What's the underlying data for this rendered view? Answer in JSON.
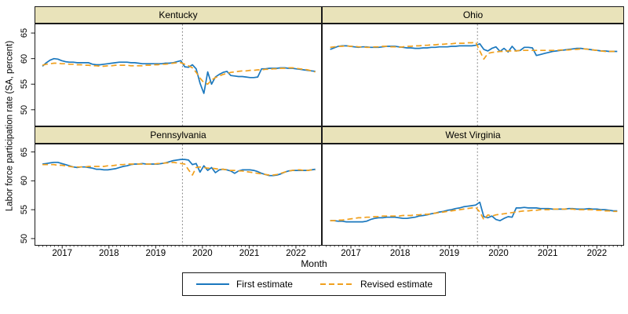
{
  "figure": {
    "ylabel": "Labor force participation rate (SA, percent)",
    "xlabel": "Month",
    "colors": {
      "first_estimate": "#1B78BE",
      "revised_estimate": "#F0A01E",
      "header_fill": "#E9E3BA",
      "border": "#1A1A1A",
      "event_line": "#8C8C8C"
    },
    "y_ticks": [
      50,
      55,
      60,
      65
    ],
    "x_year_ticks": [
      {
        "label": "2017",
        "f": 0.094
      },
      {
        "label": "2018",
        "f": 0.2576
      },
      {
        "label": "2019",
        "f": 0.4213
      },
      {
        "label": "2020",
        "f": 0.5849
      },
      {
        "label": "2021",
        "f": 0.7486
      },
      {
        "label": "2022",
        "f": 0.9122
      }
    ],
    "x_start": 0.025,
    "x_step": 0.013451,
    "event_line_f": 0.515,
    "legend": {
      "items": [
        {
          "label": "First estimate",
          "series": "first_estimate",
          "style": "solid"
        },
        {
          "label": "Revised estimate",
          "series": "revised_estimate",
          "style": "dashed"
        }
      ]
    }
  },
  "chart_data": [
    {
      "type": "line",
      "title": "Kentucky",
      "x_note": "monthly, late 2016 through late 2022; year ticks 2017-2022; vertical dashed line at early 2020",
      "ylim": [
        46.9,
        66.7
      ],
      "series": [
        {
          "name": "First estimate",
          "values": [
            58.5,
            59.2,
            59.7,
            60.0,
            59.9,
            59.6,
            59.4,
            59.3,
            59.3,
            59.2,
            59.2,
            59.2,
            59.2,
            58.9,
            58.8,
            58.8,
            58.9,
            59.0,
            59.1,
            59.2,
            59.3,
            59.3,
            59.3,
            59.2,
            59.2,
            59.1,
            59.0,
            59.0,
            59.0,
            59.0,
            59.0,
            59.0,
            59.1,
            59.1,
            59.2,
            59.4,
            59.6,
            58.4,
            58.3,
            58.8,
            58.0,
            55.2,
            53.2,
            57.4,
            55.0,
            56.4,
            56.9,
            57.3,
            57.5,
            56.7,
            56.6,
            56.5,
            56.5,
            56.4,
            56.3,
            56.3,
            56.4,
            58.0,
            58.0,
            58.1,
            58.1,
            58.1,
            58.2,
            58.2,
            58.1,
            58.1,
            58.0,
            57.9,
            57.8,
            57.7,
            57.6,
            57.5
          ]
        },
        {
          "name": "Revised estimate",
          "values": [
            58.7,
            58.9,
            59.0,
            59.1,
            59.1,
            59.0,
            59.0,
            58.9,
            58.9,
            58.8,
            58.8,
            58.7,
            58.7,
            58.6,
            58.6,
            58.5,
            58.5,
            58.6,
            58.6,
            58.7,
            58.7,
            58.7,
            58.7,
            58.6,
            58.6,
            58.6,
            58.6,
            58.7,
            58.7,
            58.8,
            58.8,
            58.9,
            58.9,
            59.0,
            59.1,
            59.2,
            59.2,
            58.9,
            58.6,
            58.2,
            57.3,
            56.2,
            55.3,
            55.0,
            55.8,
            56.3,
            56.6,
            56.9,
            57.1,
            57.3,
            57.4,
            57.5,
            57.6,
            57.6,
            57.7,
            57.7,
            57.8,
            57.8,
            57.9,
            57.9,
            58.0,
            58.0,
            58.1,
            58.1,
            58.2,
            58.2,
            58.1,
            58.0,
            57.9,
            57.8,
            57.6,
            57.4
          ]
        }
      ]
    },
    {
      "type": "line",
      "title": "Ohio",
      "x_note": "monthly, late 2016 through late 2022; year ticks 2017-2022; vertical dashed line at early 2020",
      "ylim": [
        46.9,
        66.7
      ],
      "series": [
        {
          "name": "First estimate",
          "values": [
            61.8,
            62.1,
            62.4,
            62.5,
            62.5,
            62.4,
            62.3,
            62.2,
            62.3,
            62.3,
            62.2,
            62.2,
            62.2,
            62.3,
            62.4,
            62.4,
            62.4,
            62.3,
            62.2,
            62.1,
            62.1,
            62.0,
            62.0,
            62.1,
            62.1,
            62.2,
            62.2,
            62.3,
            62.3,
            62.3,
            62.4,
            62.4,
            62.5,
            62.5,
            62.5,
            62.5,
            62.6,
            62.9,
            61.8,
            61.5,
            62.0,
            62.3,
            61.4,
            62.0,
            61.3,
            62.4,
            61.5,
            61.6,
            62.2,
            62.2,
            62.1,
            60.6,
            60.8,
            61.0,
            61.2,
            61.4,
            61.5,
            61.6,
            61.7,
            61.8,
            61.9,
            62.0,
            62.0,
            61.9,
            61.8,
            61.7,
            61.6,
            61.5,
            61.5,
            61.4,
            61.4,
            61.4
          ]
        },
        {
          "name": "Revised estimate",
          "values": [
            62.2,
            62.3,
            62.4,
            62.4,
            62.5,
            62.4,
            62.4,
            62.3,
            62.3,
            62.2,
            62.2,
            62.3,
            62.3,
            62.4,
            62.4,
            62.3,
            62.3,
            62.2,
            62.3,
            62.4,
            62.4,
            62.5,
            62.5,
            62.6,
            62.6,
            62.7,
            62.7,
            62.8,
            62.8,
            62.9,
            62.9,
            63.0,
            63.0,
            63.0,
            63.1,
            63.1,
            63.2,
            61.5,
            59.9,
            61.0,
            61.2,
            61.3,
            61.4,
            61.4,
            61.5,
            61.5,
            61.5,
            61.6,
            61.6,
            61.6,
            61.6,
            61.6,
            61.6,
            61.6,
            61.6,
            61.6,
            61.6,
            61.7,
            61.7,
            61.7,
            61.8,
            61.8,
            61.9,
            61.9,
            61.8,
            61.7,
            61.6,
            61.5,
            61.4,
            61.4,
            61.4,
            61.4
          ]
        }
      ]
    },
    {
      "type": "line",
      "title": "Pennsylvania",
      "x_note": "monthly, late 2016 through late 2022; year ticks 2017-2022; vertical dashed line at early 2020",
      "ylim": [
        48.9,
        66.3
      ],
      "series": [
        {
          "name": "First estimate",
          "values": [
            62.9,
            63.0,
            63.1,
            63.2,
            63.2,
            63.0,
            62.8,
            62.6,
            62.4,
            62.3,
            62.4,
            62.4,
            62.3,
            62.2,
            62.0,
            62.0,
            61.9,
            61.9,
            62.0,
            62.1,
            62.3,
            62.5,
            62.6,
            62.8,
            62.9,
            62.9,
            63.0,
            62.9,
            62.9,
            62.9,
            62.9,
            63.0,
            63.1,
            63.3,
            63.5,
            63.6,
            63.7,
            63.7,
            63.6,
            62.8,
            63.0,
            61.5,
            62.6,
            61.8,
            62.3,
            61.4,
            61.9,
            62.0,
            61.9,
            61.7,
            61.3,
            61.7,
            61.9,
            61.9,
            61.9,
            61.8,
            61.6,
            61.3,
            61.1,
            60.9,
            60.9,
            61.0,
            61.2,
            61.5,
            61.7,
            61.8,
            61.8,
            61.8,
            61.8,
            61.8,
            61.9,
            62.0
          ]
        },
        {
          "name": "Revised estimate",
          "values": [
            62.8,
            62.8,
            62.8,
            62.8,
            62.7,
            62.7,
            62.6,
            62.5,
            62.4,
            62.4,
            62.4,
            62.4,
            62.5,
            62.5,
            62.5,
            62.5,
            62.5,
            62.6,
            62.6,
            62.7,
            62.8,
            62.8,
            62.9,
            62.9,
            62.9,
            62.9,
            62.9,
            62.9,
            62.9,
            62.9,
            63.0,
            63.0,
            63.1,
            63.1,
            63.2,
            63.1,
            63.0,
            62.9,
            61.9,
            61.0,
            62.3,
            62.4,
            62.3,
            62.2,
            62.2,
            62.1,
            62.0,
            62.0,
            61.9,
            61.8,
            61.8,
            61.7,
            61.7,
            61.6,
            61.5,
            61.4,
            61.3,
            61.2,
            61.1,
            61.0,
            61.0,
            61.1,
            61.3,
            61.5,
            61.7,
            61.8,
            61.9,
            61.9,
            61.8,
            61.8,
            61.9,
            61.9
          ]
        }
      ]
    },
    {
      "type": "line",
      "title": "West Virginia",
      "x_note": "monthly, late 2016 through late 2022; year ticks 2017-2022; vertical dashed line at early 2020",
      "ylim": [
        48.9,
        66.3
      ],
      "series": [
        {
          "name": "First estimate",
          "values": [
            53.1,
            53.1,
            53.0,
            53.0,
            52.9,
            52.9,
            52.9,
            52.9,
            52.9,
            53.0,
            53.3,
            53.5,
            53.6,
            53.6,
            53.7,
            53.7,
            53.7,
            53.6,
            53.5,
            53.5,
            53.6,
            53.7,
            53.9,
            54.0,
            54.1,
            54.3,
            54.4,
            54.6,
            54.7,
            54.9,
            55.0,
            55.2,
            55.3,
            55.5,
            55.6,
            55.7,
            55.8,
            56.3,
            53.8,
            53.6,
            53.9,
            53.3,
            53.1,
            53.5,
            53.8,
            53.7,
            55.3,
            55.3,
            55.4,
            55.3,
            55.3,
            55.3,
            55.2,
            55.2,
            55.2,
            55.1,
            55.1,
            55.1,
            55.1,
            55.2,
            55.2,
            55.1,
            55.1,
            55.1,
            55.2,
            55.1,
            55.1,
            55.0,
            55.0,
            54.9,
            54.8,
            54.8
          ]
        },
        {
          "name": "Revised estimate",
          "values": [
            53.1,
            53.1,
            53.2,
            53.2,
            53.3,
            53.4,
            53.5,
            53.6,
            53.6,
            53.7,
            53.7,
            53.8,
            53.8,
            53.9,
            53.9,
            53.9,
            53.9,
            53.9,
            54.0,
            54.0,
            54.0,
            54.1,
            54.1,
            54.2,
            54.2,
            54.3,
            54.4,
            54.5,
            54.6,
            54.7,
            54.8,
            54.9,
            55.0,
            55.1,
            55.2,
            55.3,
            55.4,
            54.6,
            53.3,
            54.1,
            53.9,
            54.1,
            54.2,
            54.3,
            54.4,
            54.5,
            54.6,
            54.7,
            54.8,
            54.8,
            54.9,
            54.9,
            55.0,
            55.0,
            55.0,
            55.1,
            55.1,
            55.1,
            55.1,
            55.1,
            55.1,
            55.0,
            55.0,
            55.0,
            55.0,
            55.0,
            54.9,
            54.9,
            54.8,
            54.8,
            54.7,
            54.7
          ]
        }
      ]
    }
  ]
}
